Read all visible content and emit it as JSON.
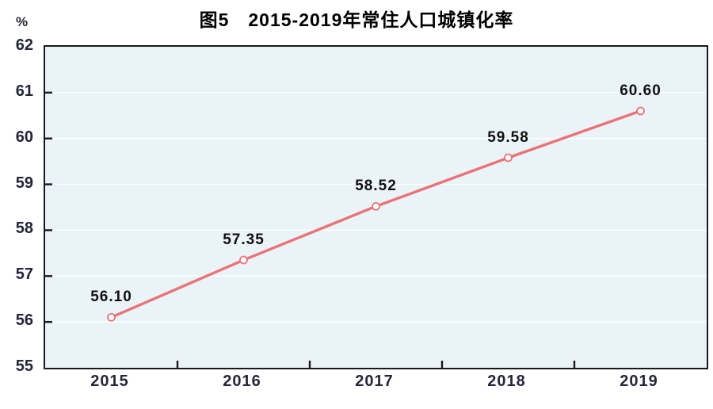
{
  "header": {
    "unit_label": "%",
    "title": "图5　2015-2019年常住人口城镇化率"
  },
  "chart_data": {
    "type": "line",
    "title": "图5　2015-2019年常住人口城镇化率",
    "series_name": "常住人口城镇化率",
    "categories": [
      "2015",
      "2016",
      "2017",
      "2018",
      "2019"
    ],
    "values": [
      56.1,
      57.35,
      58.52,
      59.58,
      60.6
    ],
    "point_labels": [
      "56.10",
      "57.35",
      "58.52",
      "59.58",
      "60.60"
    ],
    "ylabel": "%",
    "xlabel": "",
    "ylim": [
      55,
      62
    ],
    "ytick_interval": 1,
    "yticks": [
      55,
      56,
      57,
      58,
      59,
      60,
      61,
      62
    ],
    "grid": true,
    "legend_position": "none",
    "colors": {
      "line": "#ea7377",
      "marker_fill": "#ffffff",
      "plot_background": "#eaf3f7",
      "gridline": "#ffffff",
      "axis_frame": "#1a1a1a",
      "tick_text": "#26263a",
      "label_text": "#111111"
    }
  }
}
